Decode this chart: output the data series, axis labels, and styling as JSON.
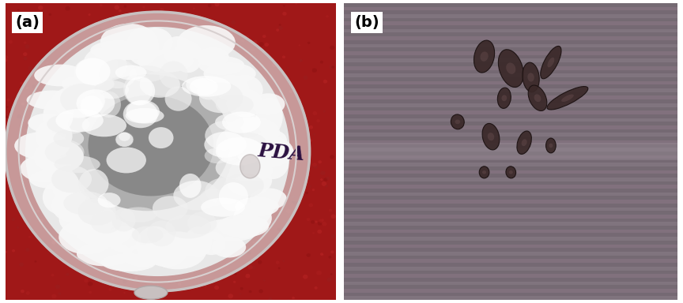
{
  "figure_width": 8.64,
  "figure_height": 3.84,
  "dpi": 100,
  "border_color": "#000000",
  "border_linewidth": 1.5,
  "label_a": "(a)",
  "label_b": "(b)",
  "label_fontsize": 14,
  "label_fontweight": "bold",
  "label_bg": "#ffffff",
  "bg_color_left": "#a01818",
  "outer_bg": "#ffffff",
  "pda_text": "PDA",
  "pda_color": "#2a1040",
  "pda_fontsize": 18,
  "panel_b_bg": "#7a6e78",
  "stripe_light": "#8a7e88",
  "stripe_dark": "#6a6068",
  "stripe_pink": "#907888",
  "n_stripes": 80,
  "spore_face": "#3a2828",
  "spore_edge": "#1a1010",
  "spores": [
    [
      0.42,
      0.82,
      0.06,
      0.11,
      -10
    ],
    [
      0.5,
      0.78,
      0.07,
      0.13,
      15
    ],
    [
      0.56,
      0.75,
      0.05,
      0.1,
      5
    ],
    [
      0.62,
      0.8,
      0.04,
      0.12,
      -25
    ],
    [
      0.58,
      0.68,
      0.05,
      0.09,
      20
    ],
    [
      0.48,
      0.68,
      0.04,
      0.07,
      -5
    ],
    [
      0.67,
      0.68,
      0.04,
      0.14,
      -60
    ],
    [
      0.34,
      0.6,
      0.04,
      0.05,
      5
    ],
    [
      0.44,
      0.55,
      0.05,
      0.09,
      10
    ],
    [
      0.54,
      0.53,
      0.04,
      0.08,
      -15
    ],
    [
      0.62,
      0.52,
      0.03,
      0.05,
      0
    ],
    [
      0.42,
      0.43,
      0.03,
      0.04,
      0
    ],
    [
      0.5,
      0.43,
      0.03,
      0.04,
      5
    ]
  ]
}
